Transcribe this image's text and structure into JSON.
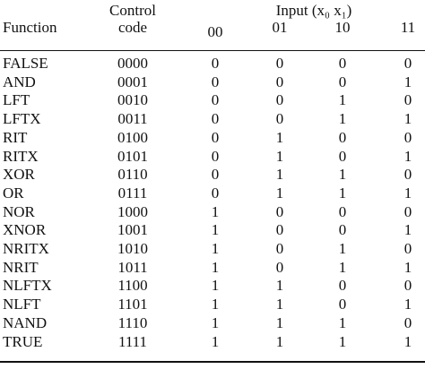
{
  "table": {
    "header": {
      "function": "Function",
      "control": [
        "Control",
        "code"
      ],
      "input": "Input (x₀ x₁)",
      "inputs": [
        "00",
        "01",
        "10",
        "11"
      ]
    },
    "rows": [
      [
        "FALSE",
        "0000",
        "0",
        "0",
        "0",
        "0"
      ],
      [
        "AND",
        "0001",
        "0",
        "0",
        "0",
        "1"
      ],
      [
        "LFT",
        "0010",
        "0",
        "0",
        "1",
        "0"
      ],
      [
        "LFTX",
        "0011",
        "0",
        "0",
        "1",
        "1"
      ],
      [
        "RIT",
        "0100",
        "0",
        "1",
        "0",
        "0"
      ],
      [
        "RITX",
        "0101",
        "0",
        "1",
        "0",
        "1"
      ],
      [
        "XOR",
        "0110",
        "0",
        "1",
        "1",
        "0"
      ],
      [
        "OR",
        "0111",
        "0",
        "1",
        "1",
        "1"
      ],
      [
        "NOR",
        "1000",
        "1",
        "0",
        "0",
        "0"
      ],
      [
        "XNOR",
        "1001",
        "1",
        "0",
        "0",
        "1"
      ],
      [
        "NRITX",
        "1010",
        "1",
        "0",
        "1",
        "0"
      ],
      [
        "NRIT",
        "1011",
        "1",
        "0",
        "1",
        "1"
      ],
      [
        "NLFTX",
        "1100",
        "1",
        "1",
        "0",
        "0"
      ],
      [
        "NLFT",
        "1101",
        "1",
        "1",
        "0",
        "1"
      ],
      [
        "NAND",
        "1110",
        "1",
        "1",
        "1",
        "0"
      ],
      [
        "TRUE",
        "1111",
        "1",
        "1",
        "1",
        "1"
      ]
    ]
  }
}
